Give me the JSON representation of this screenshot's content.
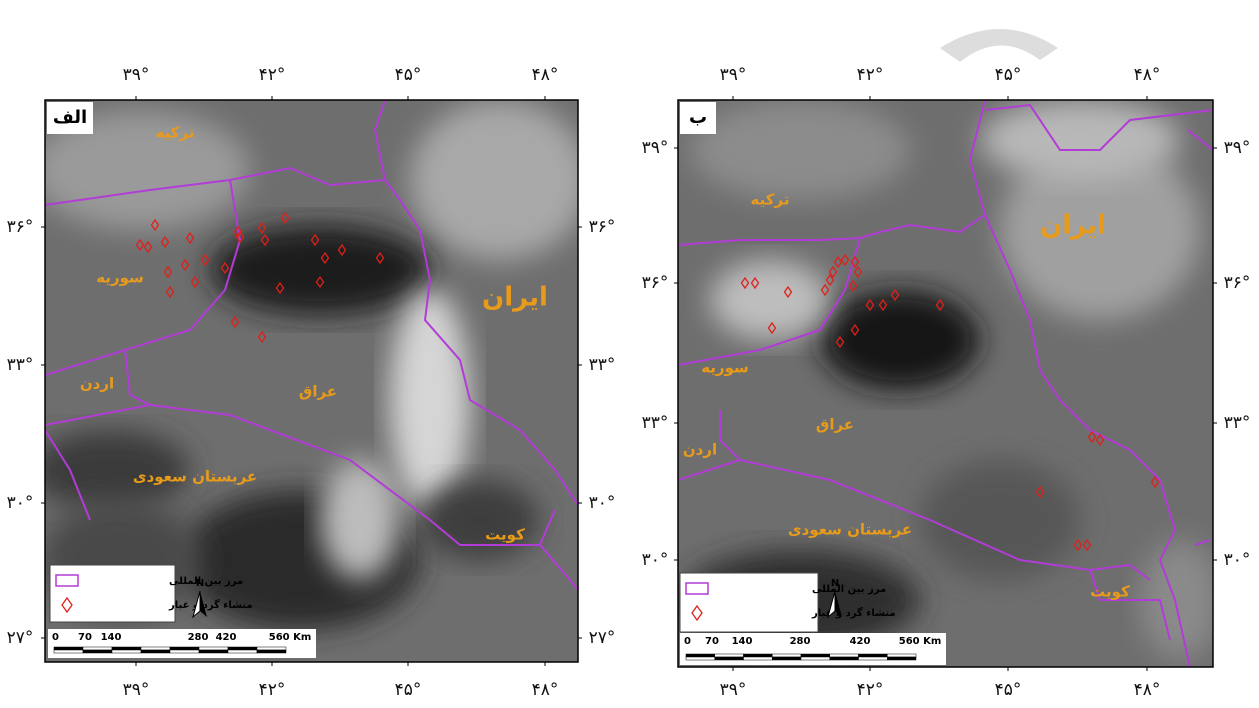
{
  "panels": [
    {
      "label": "الف",
      "lon_ticks": [
        "۳۹°",
        "۴۲°",
        "۴۵°",
        "۴۸°"
      ],
      "lat_ticks": [
        "۳۶°",
        "۳۳°",
        "۳۰°",
        "۲۷°"
      ],
      "places": [
        "ترکیه",
        "سوریه",
        "اردن",
        "عراق",
        "عربستان سعودی",
        "ایران",
        "کویت"
      ],
      "legend": [
        "مرز بین المللی",
        "منشاء گرد و غبار"
      ],
      "scale": [
        "0",
        "70",
        "140",
        "280",
        "420",
        "560 Km"
      ],
      "north": "N"
    },
    {
      "label": "ب",
      "lon_ticks": [
        "۳۹°",
        "۴۲°",
        "۴۵°",
        "۴۸°"
      ],
      "lat_ticks": [
        "۳۹°",
        "۳۶°",
        "۳۳°",
        "۳۰°"
      ],
      "places": [
        "ترکیه",
        "ایران",
        "سوریه",
        "اردن",
        "عراق",
        "عربستان سعودی",
        "کویت"
      ],
      "legend": [
        "مرز بین المللی",
        "منشاء گرد و غبار"
      ],
      "scale": [
        "0",
        "70",
        "140",
        "280",
        "420",
        "560 Km"
      ],
      "north": "N"
    }
  ]
}
